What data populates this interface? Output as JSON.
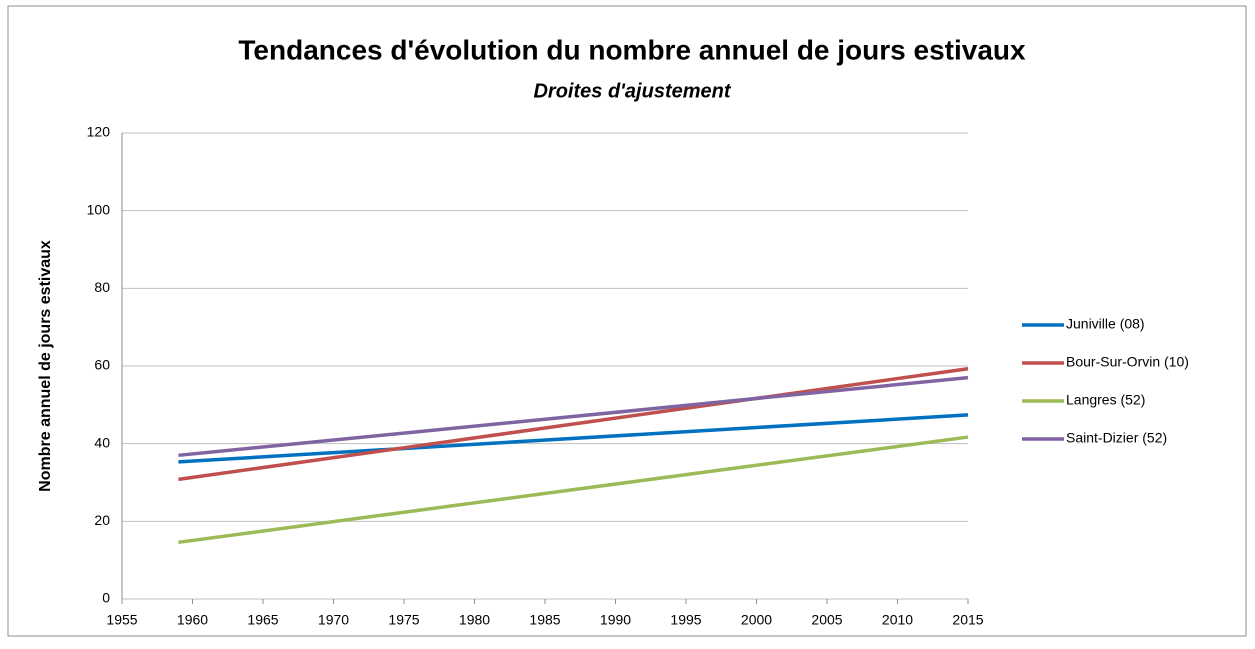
{
  "chart_data": {
    "type": "line",
    "title": "Tendances d'évolution du nombre annuel de jours estivaux",
    "subtitle": "Droites d'ajustement",
    "y_label": "Nombre annuel  de jours estivaux",
    "x": [
      1959,
      2015
    ],
    "series": [
      {
        "name": "Juniville (08)",
        "color": "#0070c0",
        "values": [
          35.3,
          47.4
        ]
      },
      {
        "name": "Bour-Sur-Orvin (10)",
        "color": "#c0504d",
        "values": [
          30.8,
          59.3
        ]
      },
      {
        "name": "Langres (52)",
        "color": "#9bbb59",
        "values": [
          14.6,
          41.7
        ]
      },
      {
        "name": "Saint-Dizier (52)",
        "color": "#8064a2",
        "values": [
          37,
          57
        ]
      }
    ],
    "xlim": [
      1955,
      2015
    ],
    "xticks": [
      1955,
      1960,
      1965,
      1970,
      1975,
      1980,
      1985,
      1990,
      1995,
      2000,
      2005,
      2010,
      2015
    ],
    "ylim": [
      0,
      120
    ],
    "yticks": [
      0,
      20,
      40,
      60,
      80,
      100,
      120
    ],
    "grid": true,
    "legend": "right"
  }
}
